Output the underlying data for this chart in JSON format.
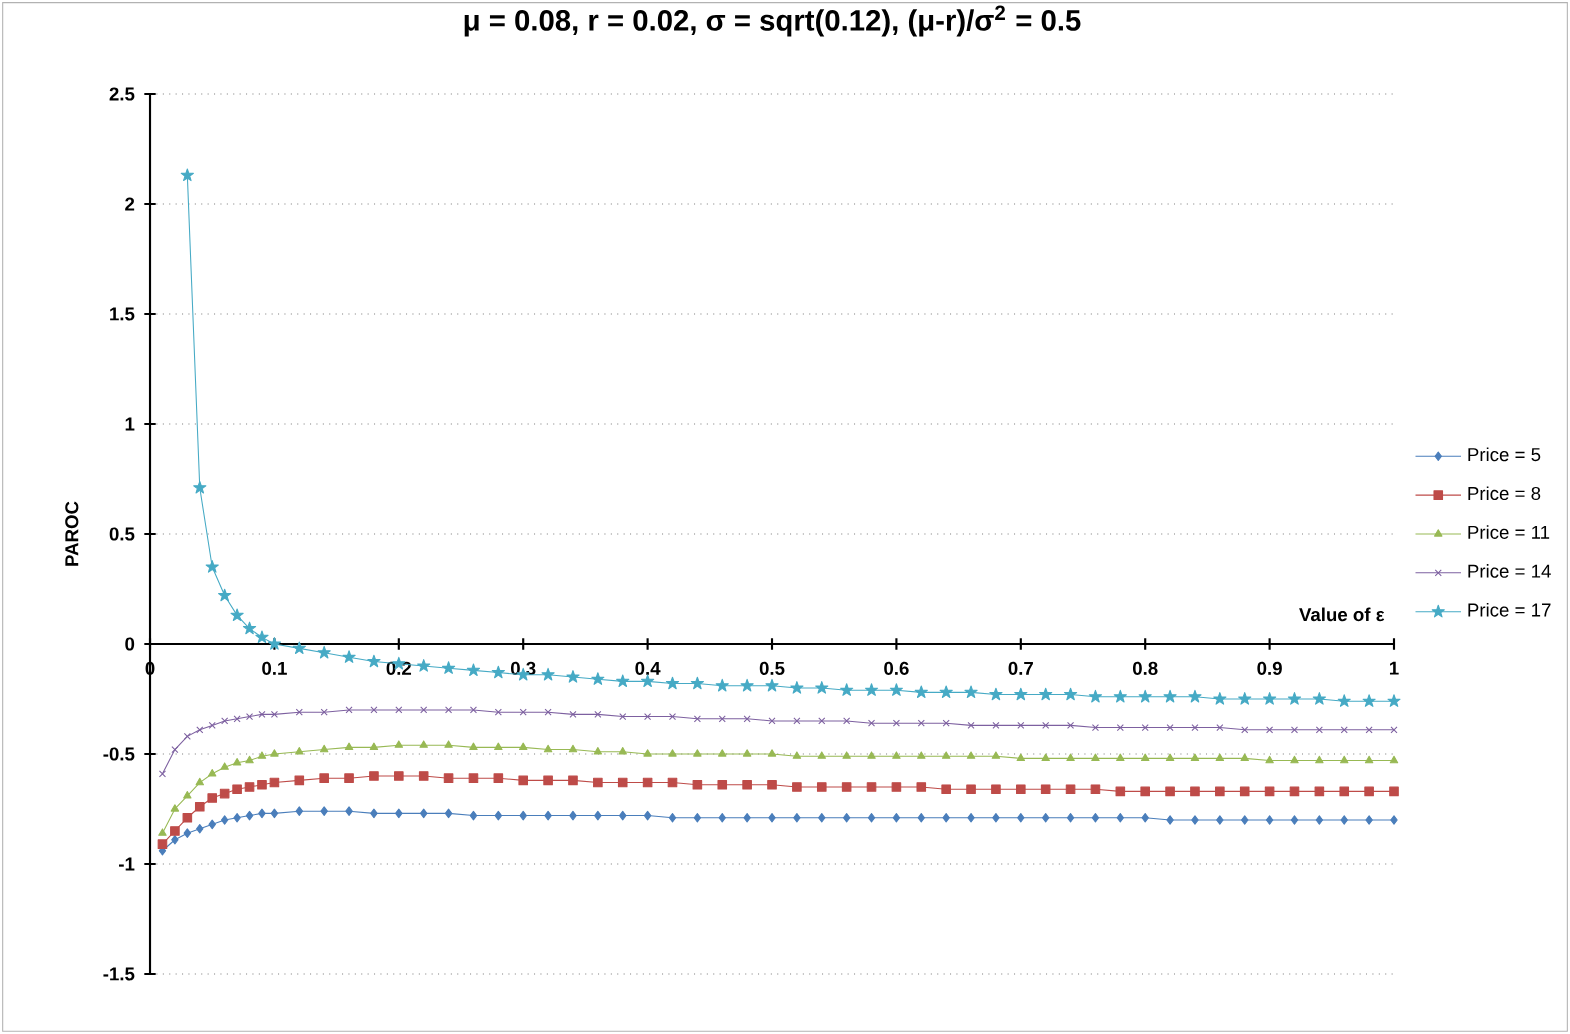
{
  "chart_data": {
    "type": "line",
    "title": "μ = 0.08, r = 0.02, σ = sqrt(0.12), (μ-r)/σ$^{2}$ = 0.5",
    "xlabel": "Value of ε",
    "ylabel": "PAROC",
    "x": [
      0.01,
      0.02,
      0.03,
      0.04,
      0.05,
      0.06,
      0.07,
      0.08,
      0.09,
      0.1,
      0.12,
      0.14,
      0.16,
      0.18,
      0.2,
      0.22,
      0.24,
      0.26,
      0.28,
      0.3,
      0.32,
      0.34,
      0.36,
      0.38,
      0.4,
      0.42,
      0.44,
      0.46,
      0.48,
      0.5,
      0.52,
      0.54,
      0.56,
      0.58,
      0.6,
      0.62,
      0.64,
      0.66,
      0.68,
      0.7,
      0.72,
      0.74,
      0.76,
      0.78,
      0.8,
      0.82,
      0.84,
      0.86,
      0.88,
      0.9,
      0.92,
      0.94,
      0.96,
      0.98,
      1.0
    ],
    "series": [
      {
        "name": "Price = 5",
        "color": "#4a7ebb",
        "marker": "diamond",
        "values": [
          -0.94,
          -0.89,
          -0.86,
          -0.84,
          -0.82,
          -0.8,
          -0.79,
          -0.78,
          -0.77,
          -0.77,
          -0.76,
          -0.76,
          -0.76,
          -0.77,
          -0.77,
          -0.77,
          -0.77,
          -0.78,
          -0.78,
          -0.78,
          -0.78,
          -0.78,
          -0.78,
          -0.78,
          -0.78,
          -0.79,
          -0.79,
          -0.79,
          -0.79,
          -0.79,
          -0.79,
          -0.79,
          -0.79,
          -0.79,
          -0.79,
          -0.79,
          -0.79,
          -0.79,
          -0.79,
          -0.79,
          -0.79,
          -0.79,
          -0.79,
          -0.79,
          -0.79,
          -0.8,
          -0.8,
          -0.8,
          -0.8,
          -0.8,
          -0.8,
          -0.8,
          -0.8,
          -0.8,
          -0.8
        ]
      },
      {
        "name": "Price = 8",
        "color": "#be4b48",
        "marker": "square",
        "values": [
          -0.91,
          -0.85,
          -0.79,
          -0.74,
          -0.7,
          -0.68,
          -0.66,
          -0.65,
          -0.64,
          -0.63,
          -0.62,
          -0.61,
          -0.61,
          -0.6,
          -0.6,
          -0.6,
          -0.61,
          -0.61,
          -0.61,
          -0.62,
          -0.62,
          -0.62,
          -0.63,
          -0.63,
          -0.63,
          -0.63,
          -0.64,
          -0.64,
          -0.64,
          -0.64,
          -0.65,
          -0.65,
          -0.65,
          -0.65,
          -0.65,
          -0.65,
          -0.66,
          -0.66,
          -0.66,
          -0.66,
          -0.66,
          -0.66,
          -0.66,
          -0.67,
          -0.67,
          -0.67,
          -0.67,
          -0.67,
          -0.67,
          -0.67,
          -0.67,
          -0.67,
          -0.67,
          -0.67,
          -0.67
        ]
      },
      {
        "name": "Price = 11",
        "color": "#98b954",
        "marker": "triangle",
        "values": [
          -0.86,
          -0.75,
          -0.69,
          -0.63,
          -0.59,
          -0.56,
          -0.54,
          -0.53,
          -0.51,
          -0.5,
          -0.49,
          -0.48,
          -0.47,
          -0.47,
          -0.46,
          -0.46,
          -0.46,
          -0.47,
          -0.47,
          -0.47,
          -0.48,
          -0.48,
          -0.49,
          -0.49,
          -0.5,
          -0.5,
          -0.5,
          -0.5,
          -0.5,
          -0.5,
          -0.51,
          -0.51,
          -0.51,
          -0.51,
          -0.51,
          -0.51,
          -0.51,
          -0.51,
          -0.51,
          -0.52,
          -0.52,
          -0.52,
          -0.52,
          -0.52,
          -0.52,
          -0.52,
          -0.52,
          -0.52,
          -0.52,
          -0.53,
          -0.53,
          -0.53,
          -0.53,
          -0.53,
          -0.53
        ]
      },
      {
        "name": "Price = 14",
        "color": "#7d60a0",
        "marker": "cross",
        "values": [
          -0.59,
          -0.48,
          -0.42,
          -0.39,
          -0.37,
          -0.35,
          -0.34,
          -0.33,
          -0.32,
          -0.32,
          -0.31,
          -0.31,
          -0.3,
          -0.3,
          -0.3,
          -0.3,
          -0.3,
          -0.3,
          -0.31,
          -0.31,
          -0.31,
          -0.32,
          -0.32,
          -0.33,
          -0.33,
          -0.33,
          -0.34,
          -0.34,
          -0.34,
          -0.35,
          -0.35,
          -0.35,
          -0.35,
          -0.36,
          -0.36,
          -0.36,
          -0.36,
          -0.37,
          -0.37,
          -0.37,
          -0.37,
          -0.37,
          -0.38,
          -0.38,
          -0.38,
          -0.38,
          -0.38,
          -0.38,
          -0.39,
          -0.39,
          -0.39,
          -0.39,
          -0.39,
          -0.39,
          -0.39
        ]
      },
      {
        "name": "Price = 17",
        "color": "#46aac5",
        "marker": "star",
        "values": [
          null,
          null,
          2.13,
          0.71,
          0.35,
          0.22,
          0.13,
          0.07,
          0.03,
          0.0,
          -0.02,
          -0.04,
          -0.06,
          -0.08,
          -0.09,
          -0.1,
          -0.11,
          -0.12,
          -0.13,
          -0.14,
          -0.14,
          -0.15,
          -0.16,
          -0.17,
          -0.17,
          -0.18,
          -0.18,
          -0.19,
          -0.19,
          -0.19,
          -0.2,
          -0.2,
          -0.21,
          -0.21,
          -0.21,
          -0.22,
          -0.22,
          -0.22,
          -0.23,
          -0.23,
          -0.23,
          -0.23,
          -0.24,
          -0.24,
          -0.24,
          -0.24,
          -0.24,
          -0.25,
          -0.25,
          -0.25,
          -0.25,
          -0.25,
          -0.26,
          -0.26,
          -0.26
        ]
      }
    ],
    "xlim": [
      0,
      1
    ],
    "xticks": [
      0,
      0.1,
      0.2,
      0.3,
      0.4,
      0.5,
      0.6,
      0.7,
      0.8,
      0.9,
      1
    ],
    "ylim": [
      -1.5,
      2.5
    ],
    "yticks": [
      -1.5,
      -1,
      -0.5,
      0,
      0.5,
      1,
      1.5,
      2,
      2.5
    ],
    "grid": "y",
    "legend": "right",
    "line_style": "solid"
  }
}
